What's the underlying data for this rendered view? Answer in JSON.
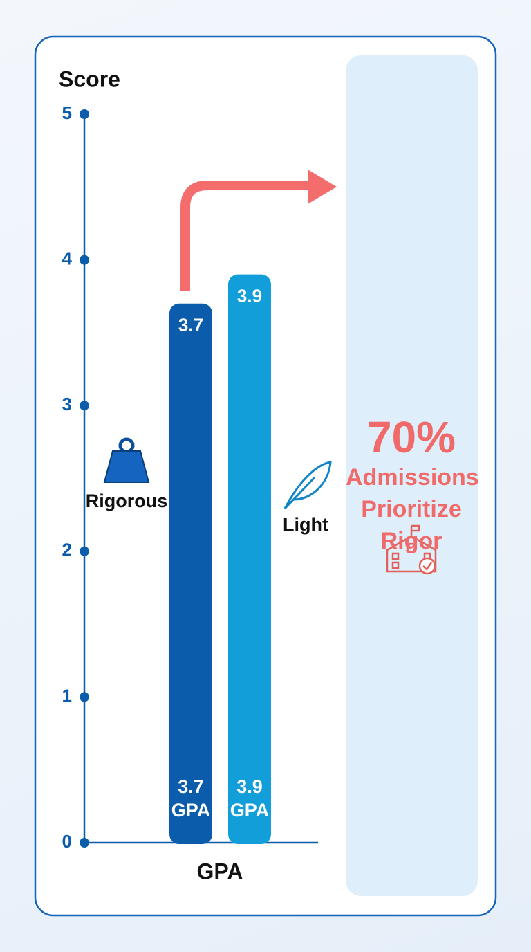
{
  "chart_data": {
    "type": "bar",
    "y_label": "Score",
    "x_label": "GPA",
    "categories": [
      "Rigorous",
      "Light"
    ],
    "series": [
      {
        "values": [
          3.7,
          3.9
        ],
        "value_labels": [
          "3.7 GPA",
          "3.9 GPA"
        ],
        "colors": [
          "#0b5cab",
          "#129fd9"
        ]
      }
    ],
    "ylim": [
      0,
      5
    ],
    "yticks": [
      0,
      1,
      2,
      3,
      4,
      5
    ],
    "axis_color": "#0b5cab",
    "accent_color": "#f06a6a",
    "annotation": {
      "value": {
        "value": 70,
        "label": "70%"
      },
      "text": "Admissions Prioritize Rigor"
    }
  }
}
